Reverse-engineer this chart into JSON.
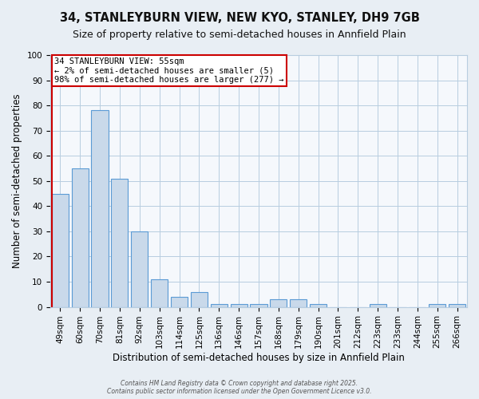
{
  "title1": "34, STANLEYBURN VIEW, NEW KYO, STANLEY, DH9 7GB",
  "title2": "Size of property relative to semi-detached houses in Annfield Plain",
  "xlabel": "Distribution of semi-detached houses by size in Annfield Plain",
  "ylabel": "Number of semi-detached properties",
  "categories": [
    "49sqm",
    "60sqm",
    "70sqm",
    "81sqm",
    "92sqm",
    "103sqm",
    "114sqm",
    "125sqm",
    "136sqm",
    "146sqm",
    "157sqm",
    "168sqm",
    "179sqm",
    "190sqm",
    "201sqm",
    "212sqm",
    "223sqm",
    "233sqm",
    "244sqm",
    "255sqm",
    "266sqm"
  ],
  "values": [
    45,
    55,
    78,
    51,
    30,
    11,
    4,
    6,
    1,
    1,
    1,
    3,
    3,
    1,
    0,
    0,
    1,
    0,
    0,
    1,
    1
  ],
  "bar_color": "#c9d9ea",
  "bar_edge_color": "#5b9bd5",
  "red_line_color": "#cc0000",
  "annotation_title": "34 STANLEYBURN VIEW: 55sqm",
  "annotation_line1": "← 2% of semi-detached houses are smaller (5)",
  "annotation_line2": "98% of semi-detached houses are larger (277) →",
  "annotation_box_color": "#ffffff",
  "annotation_box_edge": "#cc0000",
  "ylim": [
    0,
    100
  ],
  "yticks": [
    0,
    10,
    20,
    30,
    40,
    50,
    60,
    70,
    80,
    90,
    100
  ],
  "footer": "Contains HM Land Registry data © Crown copyright and database right 2025.\nContains public sector information licensed under the Open Government Licence v3.0.",
  "bg_color": "#e8eef4",
  "plot_bg_color": "#f5f8fc",
  "grid_color": "#b8cde0",
  "title_fontsize": 10.5,
  "subtitle_fontsize": 9,
  "tick_fontsize": 7.5,
  "ylabel_fontsize": 8.5,
  "xlabel_fontsize": 8.5,
  "annotation_fontsize": 7.5,
  "footer_fontsize": 5.5
}
